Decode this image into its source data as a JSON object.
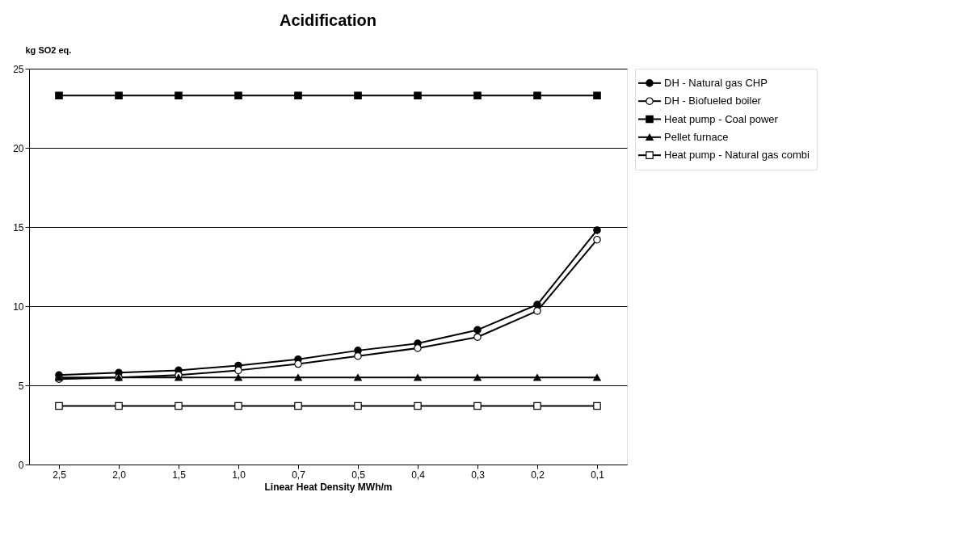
{
  "chart_data": {
    "type": "line",
    "title": "Acidification",
    "ylabel": "kg SO2 eq.",
    "xlabel": "Linear Heat Density MWh/m",
    "categories": [
      "2,5",
      "2,0",
      "1,5",
      "1,0",
      "0,7",
      "0,5",
      "0,4",
      "0,3",
      "0,2",
      "0,1"
    ],
    "series": [
      {
        "name": "DH - Natural gas CHP",
        "color": "#000000",
        "marker": "circle",
        "values": [
          5.65,
          5.8,
          5.95,
          6.25,
          6.65,
          7.2,
          7.65,
          8.5,
          10.1,
          14.8
        ]
      },
      {
        "name": "DH - Biofueled boiler",
        "color": "#000000",
        "marker": "circle-open",
        "values": [
          5.4,
          5.5,
          5.65,
          5.95,
          6.35,
          6.85,
          7.35,
          8.05,
          9.7,
          14.2
        ]
      },
      {
        "name": "Heat pump - Coal power",
        "color": "#000000",
        "marker": "square",
        "values": [
          23.3,
          23.3,
          23.3,
          23.3,
          23.3,
          23.3,
          23.3,
          23.3,
          23.3,
          23.3
        ]
      },
      {
        "name": "Pellet furnace",
        "color": "#000000",
        "marker": "triangle",
        "values": [
          5.5,
          5.5,
          5.5,
          5.5,
          5.5,
          5.5,
          5.5,
          5.5,
          5.5,
          5.5
        ]
      },
      {
        "name": "Heat pump - Natural gas combi",
        "color": "#000000",
        "marker": "square-open",
        "values": [
          3.7,
          3.7,
          3.7,
          3.7,
          3.7,
          3.7,
          3.7,
          3.7,
          3.7,
          3.7
        ]
      }
    ],
    "ylim": [
      0,
      25
    ],
    "yticks": [
      0,
      5,
      10,
      15,
      20,
      25
    ],
    "grid": "y",
    "legend": "right",
    "line_style": "solid"
  }
}
